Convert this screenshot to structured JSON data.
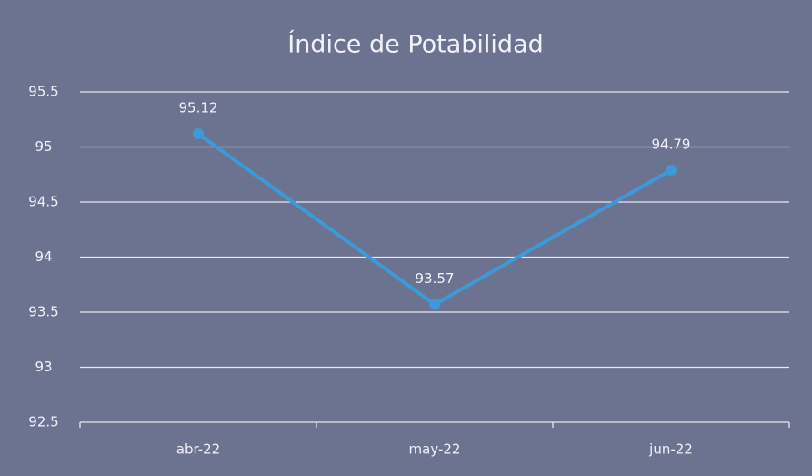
{
  "chart_data": {
    "type": "line",
    "title": "Índice de Potabilidad",
    "categories": [
      "abr-22",
      "may-22",
      "jun-22"
    ],
    "values": [
      95.12,
      93.57,
      94.79
    ],
    "color": "#3d9ad8",
    "ylim": [
      92.5,
      95.5
    ],
    "yticks": [
      92.5,
      93,
      93.5,
      94,
      94.5,
      95,
      95.5
    ],
    "grid": true
  }
}
